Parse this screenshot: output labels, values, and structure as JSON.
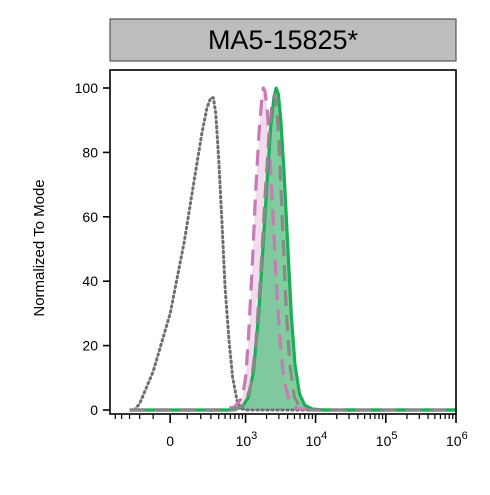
{
  "chart_data": {
    "type": "area",
    "title": "MA5-15825*",
    "ylabel": "Normalized To Mode",
    "xlabel": "",
    "x_scale": "biexponential",
    "x_tick_labels": [
      {
        "base": "0",
        "exp": ""
      },
      {
        "base": "10",
        "exp": "3"
      },
      {
        "base": "10",
        "exp": "4"
      },
      {
        "base": "10",
        "exp": "5"
      },
      {
        "base": "10",
        "exp": "6"
      }
    ],
    "y_ticks": [
      0,
      20,
      40,
      60,
      80,
      100
    ],
    "ylim": [
      0,
      105
    ],
    "grid": false,
    "legend": "none",
    "series": [
      {
        "style": "dotted",
        "color": "#6f6f6f",
        "filled": false,
        "points": [
          [
            -250,
            0
          ],
          [
            -200,
            2
          ],
          [
            -100,
            12
          ],
          [
            0,
            30
          ],
          [
            80,
            52
          ],
          [
            150,
            72
          ],
          [
            210,
            86
          ],
          [
            260,
            94
          ],
          [
            300,
            97
          ],
          [
            330,
            97
          ],
          [
            360,
            92
          ],
          [
            400,
            78
          ],
          [
            450,
            58
          ],
          [
            500,
            38
          ],
          [
            570,
            22
          ],
          [
            650,
            10
          ],
          [
            750,
            3
          ],
          [
            850,
            0.5
          ],
          [
            1000,
            0
          ],
          [
            1000000,
            0
          ]
        ]
      },
      {
        "style": "dashed",
        "color": "#c77bb6",
        "fill": "#efd5ea",
        "filled": true,
        "points": [
          [
            -300,
            0
          ],
          [
            400,
            0
          ],
          [
            700,
            1
          ],
          [
            900,
            4
          ],
          [
            1000,
            10
          ],
          [
            1100,
            22
          ],
          [
            1250,
            45
          ],
          [
            1400,
            68
          ],
          [
            1550,
            85
          ],
          [
            1700,
            96
          ],
          [
            1800,
            100
          ],
          [
            1900,
            99
          ],
          [
            2050,
            93
          ],
          [
            2200,
            82
          ],
          [
            2450,
            62
          ],
          [
            2750,
            40
          ],
          [
            3100,
            22
          ],
          [
            3500,
            10
          ],
          [
            4200,
            3
          ],
          [
            5500,
            0.5
          ],
          [
            10000,
            0
          ],
          [
            1000000,
            0
          ]
        ]
      },
      {
        "style": "solid",
        "color": "#1aaf54",
        "fill": "#6cc48e",
        "filled": true,
        "points": [
          [
            -300,
            0
          ],
          [
            600,
            0
          ],
          [
            900,
            1
          ],
          [
            1100,
            4
          ],
          [
            1300,
            12
          ],
          [
            1550,
            30
          ],
          [
            1800,
            52
          ],
          [
            2050,
            72
          ],
          [
            2300,
            88
          ],
          [
            2550,
            97
          ],
          [
            2750,
            100
          ],
          [
            2950,
            98
          ],
          [
            3200,
            90
          ],
          [
            3550,
            74
          ],
          [
            4000,
            52
          ],
          [
            4500,
            30
          ],
          [
            5100,
            14
          ],
          [
            5900,
            5
          ],
          [
            7000,
            1.5
          ],
          [
            9000,
            0.3
          ],
          [
            13000,
            0
          ],
          [
            1000000,
            0
          ]
        ]
      },
      {
        "style": "dashed",
        "color": "#8a8a8a",
        "filled": false,
        "points": [
          [
            -300,
            0
          ],
          [
            700,
            0
          ],
          [
            1000,
            2
          ],
          [
            1200,
            8
          ],
          [
            1400,
            20
          ],
          [
            1650,
            42
          ],
          [
            1900,
            66
          ],
          [
            2150,
            84
          ],
          [
            2400,
            95
          ],
          [
            2600,
            98
          ],
          [
            2800,
            94
          ],
          [
            3050,
            80
          ],
          [
            3400,
            56
          ],
          [
            3800,
            32
          ],
          [
            4300,
            14
          ],
          [
            5000,
            4
          ],
          [
            6000,
            0.8
          ],
          [
            8000,
            0
          ],
          [
            1000000,
            0
          ]
        ]
      }
    ]
  }
}
